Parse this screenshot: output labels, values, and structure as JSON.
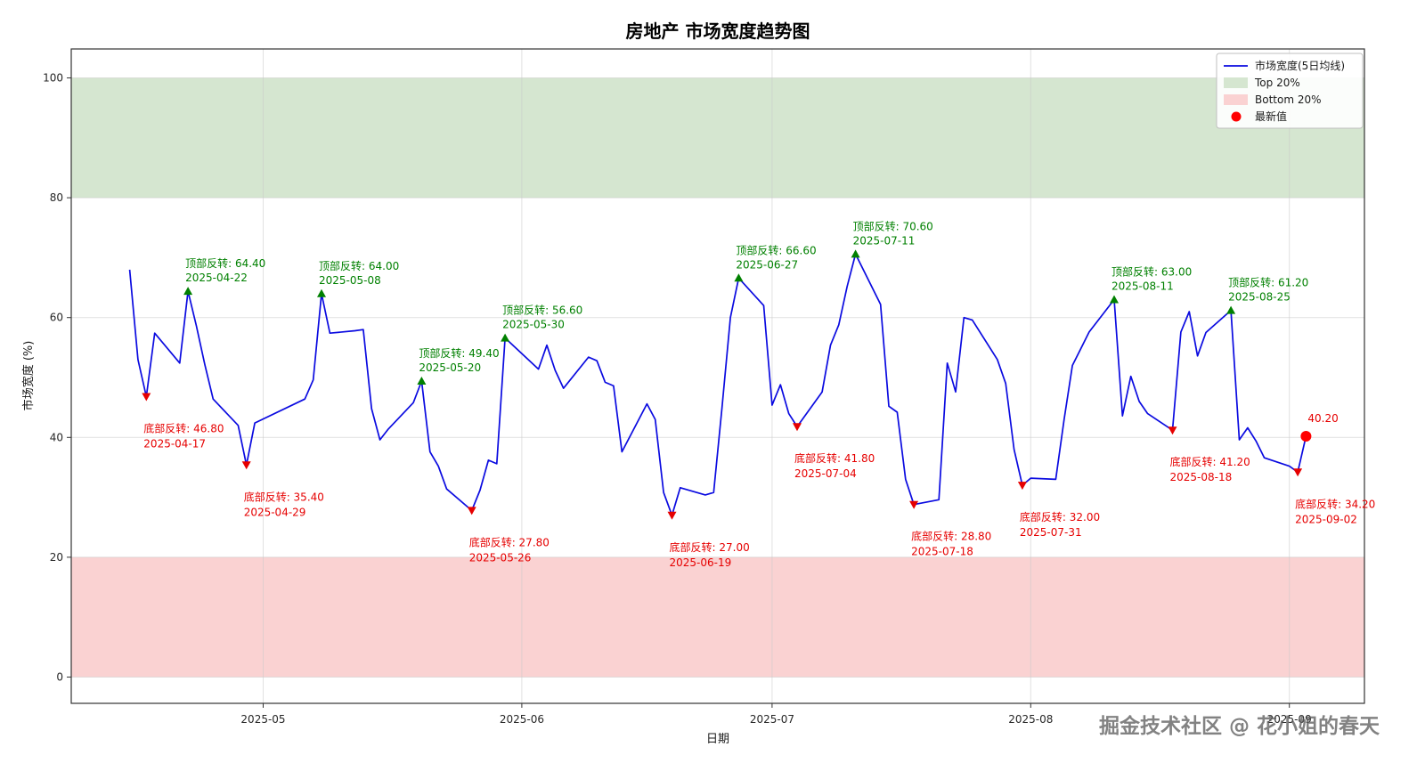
{
  "watermark": "掘金技术社区 @ 花小姐的春天",
  "chart_data": {
    "type": "line",
    "title": "房地产 市场宽度趋势图",
    "xlabel": "日期",
    "ylabel": "市场宽度 (%)",
    "x_tick_labels": [
      "2025-05",
      "2025-06",
      "2025-07",
      "2025-08",
      "2025-09"
    ],
    "x_tick_dates": [
      "2025-05-01",
      "2025-06-01",
      "2025-07-01",
      "2025-08-01",
      "2025-09-01"
    ],
    "y_ticks": [
      0,
      20,
      40,
      60,
      80,
      100
    ],
    "ylim": [
      -4.4,
      104.8
    ],
    "grid": true,
    "legend_position": "upper right",
    "bands": {
      "top": {
        "label": "Top 20%",
        "from": 80,
        "to": 100
      },
      "bottom": {
        "label": "Bottom 20%",
        "from": 0,
        "to": 20
      }
    },
    "legend": {
      "line": "市场宽度(5日均线)",
      "top_band": "Top 20%",
      "bottom_band": "Bottom 20%",
      "latest": "最新值"
    },
    "series": {
      "name": "市场宽度(5日均线)",
      "dates": [
        "2025-04-15",
        "2025-04-16",
        "2025-04-17",
        "2025-04-18",
        "2025-04-21",
        "2025-04-22",
        "2025-04-23",
        "2025-04-24",
        "2025-04-25",
        "2025-04-28",
        "2025-04-29",
        "2025-04-30",
        "2025-05-06",
        "2025-05-07",
        "2025-05-08",
        "2025-05-09",
        "2025-05-12",
        "2025-05-13",
        "2025-05-14",
        "2025-05-15",
        "2025-05-16",
        "2025-05-19",
        "2025-05-20",
        "2025-05-21",
        "2025-05-22",
        "2025-05-23",
        "2025-05-26",
        "2025-05-27",
        "2025-05-28",
        "2025-05-29",
        "2025-05-30",
        "2025-06-03",
        "2025-06-04",
        "2025-06-05",
        "2025-06-06",
        "2025-06-09",
        "2025-06-10",
        "2025-06-11",
        "2025-06-12",
        "2025-06-13",
        "2025-06-16",
        "2025-06-17",
        "2025-06-18",
        "2025-06-19",
        "2025-06-20",
        "2025-06-23",
        "2025-06-24",
        "2025-06-25",
        "2025-06-26",
        "2025-06-27",
        "2025-06-30",
        "2025-07-01",
        "2025-07-02",
        "2025-07-03",
        "2025-07-04",
        "2025-07-07",
        "2025-07-08",
        "2025-07-09",
        "2025-07-10",
        "2025-07-11",
        "2025-07-14",
        "2025-07-15",
        "2025-07-16",
        "2025-07-17",
        "2025-07-18",
        "2025-07-21",
        "2025-07-22",
        "2025-07-23",
        "2025-07-24",
        "2025-07-25",
        "2025-07-28",
        "2025-07-29",
        "2025-07-30",
        "2025-07-31",
        "2025-08-01",
        "2025-08-04",
        "2025-08-05",
        "2025-08-06",
        "2025-08-07",
        "2025-08-08",
        "2025-08-11",
        "2025-08-12",
        "2025-08-13",
        "2025-08-14",
        "2025-08-15",
        "2025-08-18",
        "2025-08-19",
        "2025-08-20",
        "2025-08-21",
        "2025-08-22",
        "2025-08-25",
        "2025-08-26",
        "2025-08-27",
        "2025-08-28",
        "2025-08-29",
        "2025-09-01",
        "2025-09-02",
        "2025-09-03"
      ],
      "values": [
        68.0,
        53.0,
        46.8,
        57.4,
        52.4,
        64.4,
        58.6,
        52.2,
        46.4,
        42.0,
        35.4,
        42.4,
        46.4,
        49.6,
        64.0,
        57.4,
        57.8,
        58.0,
        44.8,
        39.6,
        41.4,
        45.8,
        49.4,
        37.6,
        35.2,
        31.4,
        27.8,
        31.2,
        36.2,
        35.6,
        56.6,
        51.4,
        55.4,
        51.2,
        48.2,
        53.4,
        52.8,
        49.2,
        48.6,
        37.6,
        45.6,
        43.0,
        30.8,
        27.0,
        31.6,
        30.4,
        30.8,
        45.0,
        60.0,
        66.6,
        62.0,
        45.4,
        48.8,
        44.0,
        41.8,
        47.6,
        55.4,
        58.8,
        65.2,
        70.6,
        62.2,
        45.2,
        44.2,
        33.0,
        28.8,
        29.6,
        52.4,
        47.6,
        60.0,
        59.6,
        53.0,
        49.0,
        38.0,
        32.0,
        33.2,
        33.0,
        43.0,
        52.0,
        54.8,
        57.6,
        63.0,
        43.6,
        50.2,
        46.0,
        44.0,
        41.2,
        57.6,
        61.0,
        53.6,
        57.5,
        61.2,
        39.6,
        41.6,
        39.4,
        36.6,
        35.2,
        34.2,
        40.2
      ]
    },
    "annotations": [
      {
        "kind": "bottom",
        "label": "底部反转",
        "value": 46.8,
        "date": "2025-04-17"
      },
      {
        "kind": "top",
        "label": "顶部反转",
        "value": 64.4,
        "date": "2025-04-22"
      },
      {
        "kind": "bottom",
        "label": "底部反转",
        "value": 35.4,
        "date": "2025-04-29"
      },
      {
        "kind": "top",
        "label": "顶部反转",
        "value": 64.0,
        "date": "2025-05-08"
      },
      {
        "kind": "top",
        "label": "顶部反转",
        "value": 49.4,
        "date": "2025-05-20"
      },
      {
        "kind": "bottom",
        "label": "底部反转",
        "value": 27.8,
        "date": "2025-05-26"
      },
      {
        "kind": "top",
        "label": "顶部反转",
        "value": 56.6,
        "date": "2025-05-30"
      },
      {
        "kind": "bottom",
        "label": "底部反转",
        "value": 27.0,
        "date": "2025-06-19"
      },
      {
        "kind": "top",
        "label": "顶部反转",
        "value": 66.6,
        "date": "2025-06-27"
      },
      {
        "kind": "bottom",
        "label": "底部反转",
        "value": 41.8,
        "date": "2025-07-04"
      },
      {
        "kind": "top",
        "label": "顶部反转",
        "value": 70.6,
        "date": "2025-07-11"
      },
      {
        "kind": "bottom",
        "label": "底部反转",
        "value": 28.8,
        "date": "2025-07-18"
      },
      {
        "kind": "bottom",
        "label": "底部反转",
        "value": 32.0,
        "date": "2025-07-31"
      },
      {
        "kind": "top",
        "label": "顶部反转",
        "value": 63.0,
        "date": "2025-08-11"
      },
      {
        "kind": "bottom",
        "label": "底部反转",
        "value": 41.2,
        "date": "2025-08-18"
      },
      {
        "kind": "top",
        "label": "顶部反转",
        "value": 61.2,
        "date": "2025-08-25"
      },
      {
        "kind": "bottom",
        "label": "底部反转",
        "value": 34.2,
        "date": "2025-09-02"
      }
    ],
    "latest": {
      "label": "最新值",
      "value": 40.2,
      "date": "2025-09-03"
    },
    "colors": {
      "line": "#0a0ae0",
      "top_band": "#d5e6d0",
      "bottom_band": "#fad2d2",
      "top_annotation": "#008000",
      "bottom_annotation": "#e60000",
      "latest_dot": "#ff0000",
      "grid": "#c8c8c8",
      "frame": "#333333",
      "watermark": "#5f5f5f"
    }
  }
}
